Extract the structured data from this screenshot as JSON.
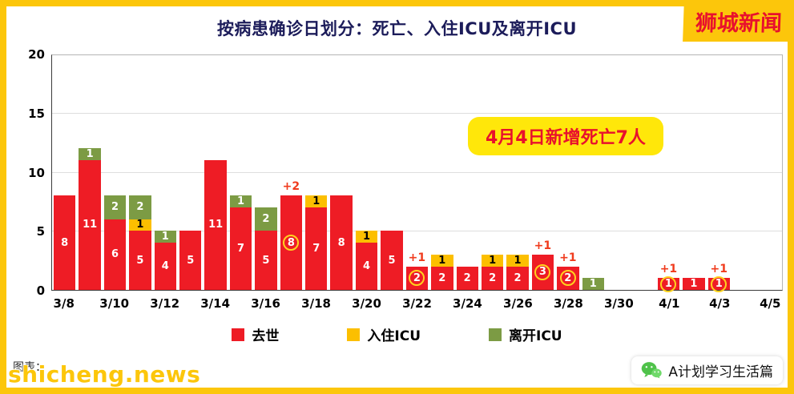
{
  "page": {
    "logo": "狮城新闻",
    "credit": "图表：",
    "watermark": "shicheng.news",
    "account": "A计划学习生活篇"
  },
  "chart_data": {
    "type": "bar",
    "subtype": "stacked-bar",
    "title": "按病患确诊日划分：死亡、入住ICU及离开ICU",
    "annotation": "4月4日新增死亡7人",
    "ylim": [
      0,
      20
    ],
    "yticks": [
      0,
      5,
      10,
      15,
      20
    ],
    "xtick_labels": [
      "3/8",
      "3/10",
      "3/12",
      "3/14",
      "3/16",
      "3/18",
      "3/20",
      "3/22",
      "3/24",
      "3/26",
      "3/28",
      "3/30",
      "4/1",
      "4/3",
      "4/5"
    ],
    "legend": [
      {
        "key": "deaths",
        "label": "去世",
        "color": "#ee1c25"
      },
      {
        "key": "icu_in",
        "label": "入住ICU",
        "color": "#fcbf00"
      },
      {
        "key": "icu_out",
        "label": "离开ICU",
        "color": "#7c9b44"
      }
    ],
    "days": [
      {
        "date": "3/8",
        "deaths": 8
      },
      {
        "date": "3/9",
        "deaths": 11,
        "icu_out": 1
      },
      {
        "date": "3/10",
        "deaths": 6,
        "icu_out": 2
      },
      {
        "date": "3/11",
        "deaths": 5,
        "icu_in": 1,
        "icu_out": 2
      },
      {
        "date": "3/12",
        "deaths": 4,
        "icu_out": 1
      },
      {
        "date": "3/13",
        "deaths": 5
      },
      {
        "date": "3/14",
        "deaths": 11
      },
      {
        "date": "3/15",
        "deaths": 7,
        "icu_out": 1
      },
      {
        "date": "3/16",
        "deaths": 5,
        "icu_out": 2
      },
      {
        "date": "3/17",
        "deaths": 8,
        "plus": "+2",
        "circled": true
      },
      {
        "date": "3/18",
        "deaths": 7,
        "icu_in": 1
      },
      {
        "date": "3/19",
        "deaths": 8
      },
      {
        "date": "3/20",
        "deaths": 4,
        "icu_in": 1
      },
      {
        "date": "3/21",
        "deaths": 5
      },
      {
        "date": "3/22",
        "deaths": 2,
        "plus": "+1",
        "circled": true
      },
      {
        "date": "3/23",
        "deaths": 2,
        "icu_in": 1
      },
      {
        "date": "3/24",
        "deaths": 2
      },
      {
        "date": "3/25",
        "deaths": 2,
        "icu_in": 1
      },
      {
        "date": "3/26",
        "deaths": 2,
        "icu_in": 1
      },
      {
        "date": "3/27",
        "deaths": 3,
        "plus": "+1",
        "circled": true
      },
      {
        "date": "3/28",
        "deaths": 2,
        "plus": "+1",
        "circled": true
      },
      {
        "date": "3/29",
        "icu_out": 1
      },
      {
        "date": "3/30"
      },
      {
        "date": "3/31"
      },
      {
        "date": "4/1",
        "deaths": 1,
        "plus": "+1",
        "circled": true
      },
      {
        "date": "4/2",
        "deaths": 1
      },
      {
        "date": "4/3",
        "deaths": 1,
        "plus": "+1",
        "circled": true
      },
      {
        "date": "4/4"
      },
      {
        "date": "4/5"
      }
    ]
  }
}
